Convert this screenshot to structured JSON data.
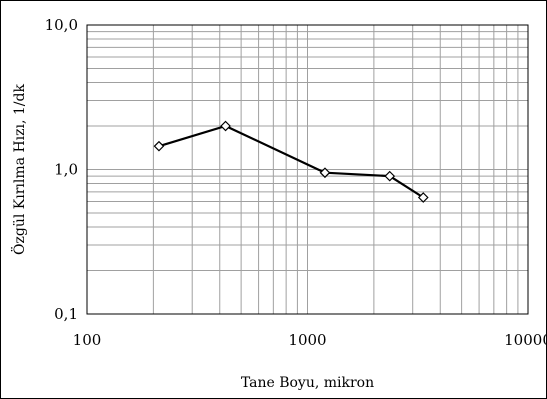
{
  "chart_data": {
    "type": "line",
    "xlabel": "Tane Boyu, mikron",
    "ylabel": "Özgül Kırılma Hızı, 1/dk",
    "x_scale": "log",
    "y_scale": "log",
    "xlim": [
      100,
      10000
    ],
    "ylim": [
      0.1,
      10.0
    ],
    "x_tick_labels": [
      "100",
      "1000",
      "10000"
    ],
    "y_tick_labels": [
      "10,0",
      "1,0",
      "0,1"
    ],
    "grid": true,
    "legend": "none",
    "series": [
      {
        "marker": "diamond",
        "color": "#000000",
        "points": [
          {
            "x": 212,
            "y": 1.45
          },
          {
            "x": 425,
            "y": 2.0
          },
          {
            "x": 1200,
            "y": 0.95
          },
          {
            "x": 2360,
            "y": 0.9
          },
          {
            "x": 3350,
            "y": 0.64
          }
        ]
      }
    ],
    "colors": {
      "grid": "#a0a0a0",
      "line": "#000000",
      "marker_fill": "#ffffff"
    }
  }
}
